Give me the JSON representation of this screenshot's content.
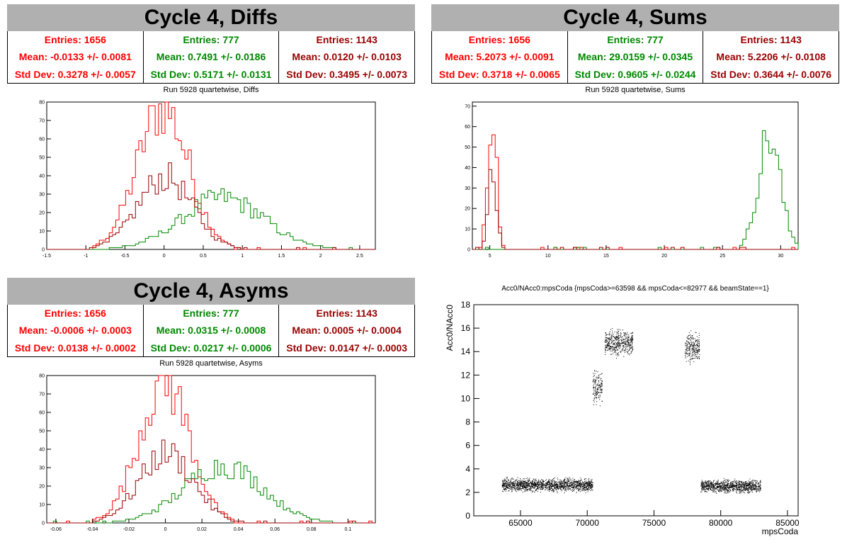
{
  "colors": {
    "red": "#ff0000",
    "green": "#008800",
    "darkred": "#990000"
  },
  "panels": {
    "diffs": {
      "title": "Cycle 4, Diffs",
      "subtitle": "Run 5928 quartetwise, Diffs",
      "stats": [
        {
          "entries": "Entries: 1656",
          "mean": "Mean: -0.0133 +/- 0.0081",
          "std": "Std Dev: 0.3278 +/- 0.0057"
        },
        {
          "entries": "Entries: 777",
          "mean": "Mean: 0.7491 +/- 0.0186",
          "std": "Std Dev: 0.5171 +/- 0.0131"
        },
        {
          "entries": "Entries: 1143",
          "mean": "Mean: 0.0120 +/- 0.0103",
          "std": "Std Dev: 0.3495 +/- 0.0073"
        }
      ]
    },
    "sums": {
      "title": "Cycle 4, Sums",
      "subtitle": "Run 5928 quartetwise, Sums",
      "stats": [
        {
          "entries": "Entries: 1656",
          "mean": "Mean: 5.2073 +/- 0.0091",
          "std": "Std Dev: 0.3718 +/- 0.0065"
        },
        {
          "entries": "Entries: 777",
          "mean": "Mean: 29.0159 +/- 0.0345",
          "std": "Std Dev: 0.9605 +/- 0.0244"
        },
        {
          "entries": "Entries: 1143",
          "mean": "Mean: 5.2206 +/- 0.0108",
          "std": "Std Dev: 0.3644 +/- 0.0076"
        }
      ]
    },
    "asyms": {
      "title": "Cycle 4, Asyms",
      "subtitle": "Run 5928 quartetwise, Asyms",
      "stats": [
        {
          "entries": "Entries: 1656",
          "mean": "Mean: -0.0006 +/- 0.0003",
          "std": "Std Dev: 0.0138 +/- 0.0002"
        },
        {
          "entries": "Entries: 777",
          "mean": "Mean: 0.0315 +/- 0.0008",
          "std": "Std Dev: 0.0217 +/- 0.0006"
        },
        {
          "entries": "Entries: 1143",
          "mean": "Mean: 0.0005 +/- 0.0004",
          "std": "Std Dev: 0.0147 +/- 0.0003"
        }
      ]
    },
    "scatter": {
      "title": "Acc0/NAcc0:mpsCoda {mpsCoda>=63598 && mpsCoda<=82977 && beamState==1}"
    }
  },
  "chart_data": [
    {
      "type": "histogram",
      "xlim": [
        -1.5,
        2.7
      ],
      "ylim": [
        0,
        80
      ],
      "xticks": [
        "-1.5",
        "-1",
        "-0.5",
        "0",
        "0.5",
        "1",
        "1.5",
        "2",
        "2.5"
      ],
      "yticks": [
        "0",
        "10",
        "20",
        "30",
        "40",
        "50",
        "60",
        "70",
        "80"
      ],
      "series": [
        {
          "color": "red",
          "mean": -0.0133,
          "sigma": 0.3278,
          "peak": 77,
          "entries": 1656
        },
        {
          "color": "green",
          "mean": 0.7491,
          "sigma": 0.5171,
          "peak": 28,
          "entries": 777
        },
        {
          "color": "darkred",
          "mean": 0.012,
          "sigma": 0.3495,
          "peak": 39,
          "entries": 1143
        }
      ]
    },
    {
      "type": "histogram",
      "xlim": [
        3.5,
        31.5
      ],
      "ylim": [
        0,
        72
      ],
      "xticks": [
        "5",
        "10",
        "15",
        "20",
        "25",
        "30"
      ],
      "yticks": [
        "0",
        "10",
        "20",
        "30",
        "40",
        "50",
        "60",
        "70"
      ],
      "series": [
        {
          "color": "red",
          "mean": 5.2073,
          "sigma": 0.3718,
          "peak": 69,
          "entries": 1656
        },
        {
          "color": "green",
          "mean": 29.0159,
          "sigma": 0.9605,
          "peak": 55,
          "entries": 777
        },
        {
          "color": "darkred",
          "mean": 5.2206,
          "sigma": 0.3644,
          "peak": 36,
          "entries": 1143
        }
      ]
    },
    {
      "type": "histogram",
      "xlim": [
        -0.065,
        0.115
      ],
      "ylim": [
        0,
        80
      ],
      "xticks": [
        "-0.06",
        "-0.04",
        "-0.02",
        "0",
        "0.02",
        "0.04",
        "0.06",
        "0.08",
        "0.1"
      ],
      "yticks": [
        "0",
        "10",
        "20",
        "30",
        "40",
        "50",
        "60",
        "70",
        "80"
      ],
      "series": [
        {
          "color": "red",
          "mean": -0.0006,
          "sigma": 0.0138,
          "peak": 77,
          "entries": 1656
        },
        {
          "color": "green",
          "mean": 0.0315,
          "sigma": 0.0217,
          "peak": 31,
          "entries": 777
        },
        {
          "color": "darkred",
          "mean": 0.0005,
          "sigma": 0.0147,
          "peak": 38,
          "entries": 1143
        }
      ]
    },
    {
      "type": "scatter",
      "xlabel": "mpsCoda",
      "ylabel": "Acc0/NAcc0",
      "xlim": [
        61500,
        85800
      ],
      "ylim": [
        0,
        18
      ],
      "xticks": [
        "65000",
        "70000",
        "75000",
        "80000",
        "85000"
      ],
      "yticks": [
        "0",
        "2",
        "4",
        "6",
        "8",
        "10",
        "12",
        "14",
        "16",
        "18"
      ],
      "clusters": [
        {
          "x": [
            63598,
            70400
          ],
          "y": [
            1.9,
            3.4
          ]
        },
        {
          "x": [
            70400,
            71100
          ],
          "y": [
            9.0,
            12.8
          ]
        },
        {
          "x": [
            71300,
            73400
          ],
          "y": [
            13.3,
            16.3
          ]
        },
        {
          "x": [
            77300,
            78400
          ],
          "y": [
            12.8,
            16.0
          ]
        },
        {
          "x": [
            78500,
            82977
          ],
          "y": [
            1.8,
            3.3
          ]
        }
      ]
    }
  ]
}
